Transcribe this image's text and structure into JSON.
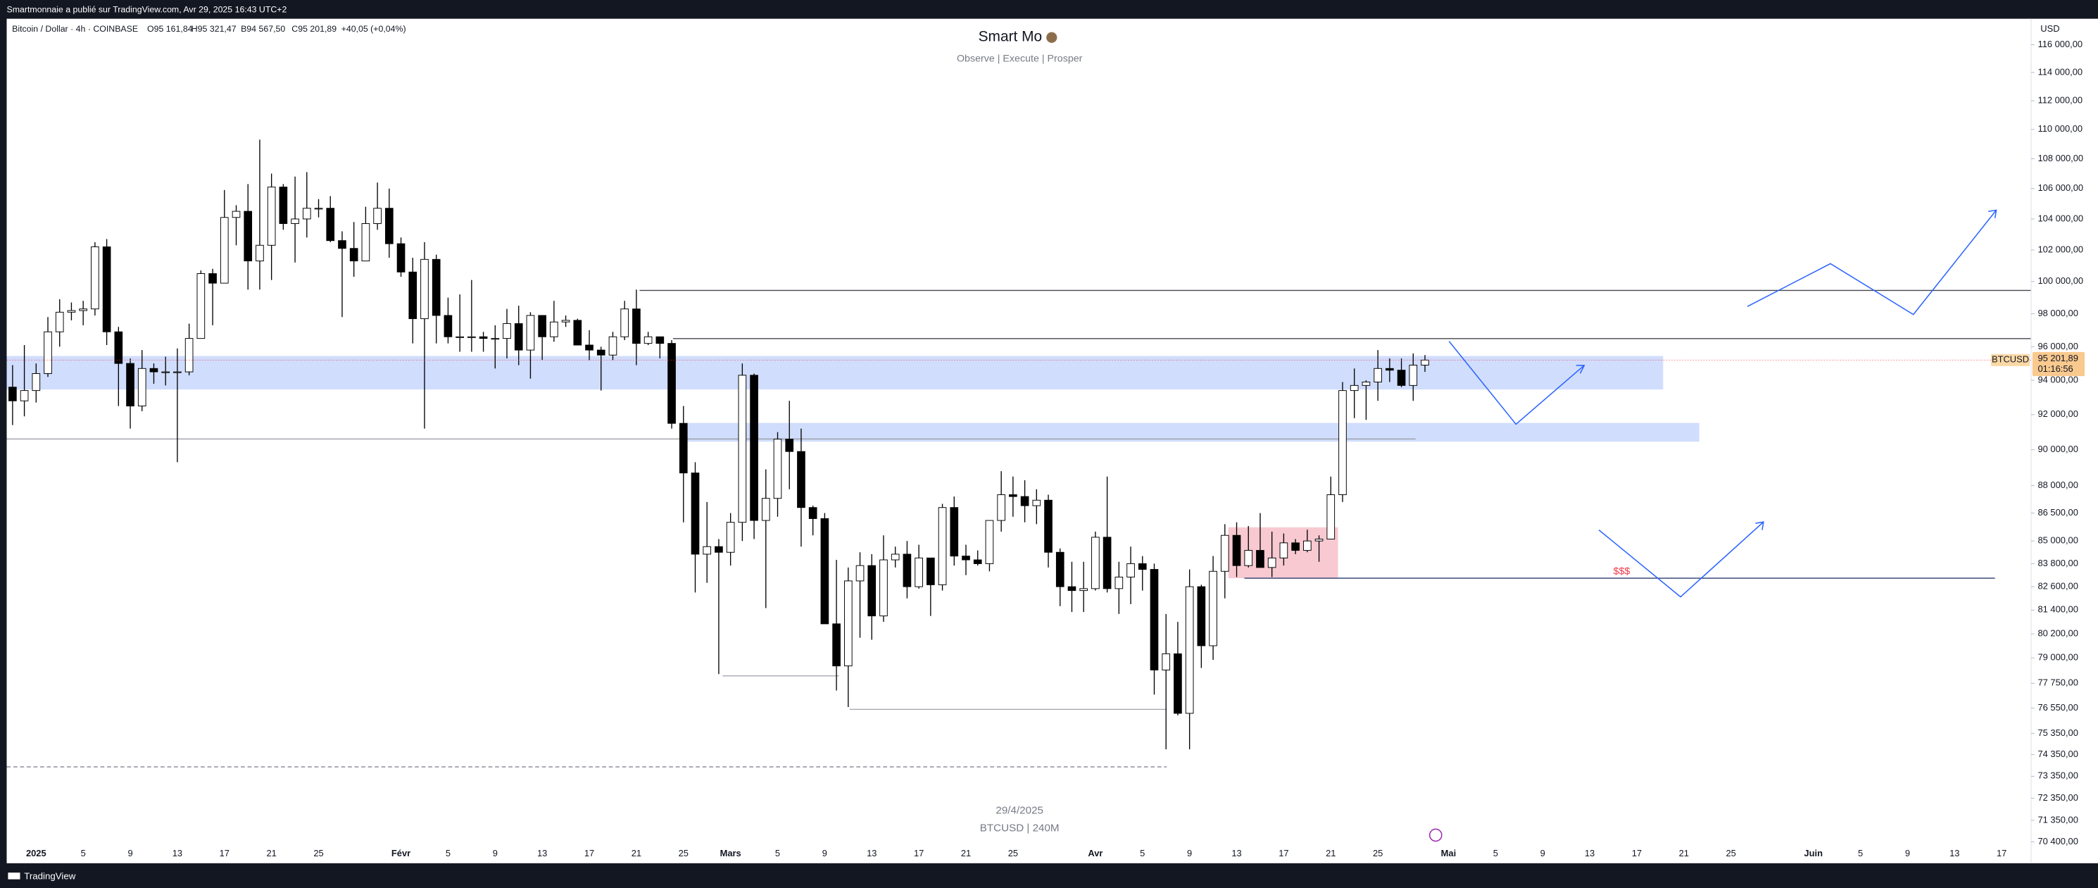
{
  "top_bar": "Smartmonnaie a publié sur TradingView.com, Avr 29, 2025 16:43 UTC+2",
  "brand": "TradingView",
  "legend": {
    "symbol": "Bitcoin / Dollar · 4h · COINBASE",
    "ohlc": [
      "O95 161,84",
      "H95 321,47",
      "B94 567,50",
      "C95 201,89",
      "+40,05 (+0,04%)"
    ]
  },
  "watermark": [
    "29/4/2025",
    "BTCUSD | 240M"
  ],
  "currency": "USD",
  "annotations": [
    "$$$"
  ],
  "chart_data": {
    "type": "candlestick",
    "title": "Smart Mo",
    "subtitle": "Observe |  Execute |  Prosper",
    "log_scale": true,
    "grid": false,
    "ylim": [
      69460,
      117900
    ],
    "yticks": [
      {
        "value": 116000,
        "label": "116 000,00"
      },
      {
        "value": 114000,
        "label": "114 000,00"
      },
      {
        "value": 112000,
        "label": "112 000,00"
      },
      {
        "value": 110000,
        "label": "110 000,00"
      },
      {
        "value": 108000,
        "label": "108 000,00"
      },
      {
        "value": 106000,
        "label": "106 000,00"
      },
      {
        "value": 104000,
        "label": "104 000,00"
      },
      {
        "value": 102000,
        "label": "102 000,00"
      },
      {
        "value": 100000,
        "label": "100 000,00"
      },
      {
        "value": 98000,
        "label": "98 000,00"
      },
      {
        "value": 96000,
        "label": "96 000,00"
      },
      {
        "value": 94000,
        "label": "94 000,00"
      },
      {
        "value": 92000,
        "label": "92 000,00"
      },
      {
        "value": 90000,
        "label": "90 000,00"
      },
      {
        "value": 88000,
        "label": "88 000,00"
      },
      {
        "value": 86500,
        "label": "86 500,00"
      },
      {
        "value": 85000,
        "label": "85 000,00"
      },
      {
        "value": 83800,
        "label": "83 800,00"
      },
      {
        "value": 82600,
        "label": "82 600,00"
      },
      {
        "value": 81400,
        "label": "81 400,00"
      },
      {
        "value": 80200,
        "label": "80 200,00"
      },
      {
        "value": 79000,
        "label": "79 000,00"
      },
      {
        "value": 77750,
        "label": "77 750,00"
      },
      {
        "value": 76550,
        "label": "76 550,00"
      },
      {
        "value": 75350,
        "label": "75 350,00"
      },
      {
        "value": 74350,
        "label": "74 350,00"
      },
      {
        "value": 73350,
        "label": "73 350,00"
      },
      {
        "value": 72350,
        "label": "72 350,00"
      },
      {
        "value": 71350,
        "label": "71 350,00"
      },
      {
        "value": 70400,
        "label": "70 400,00"
      }
    ],
    "categories": [
      null,
      null,
      "2025",
      null,
      null,
      null,
      "5",
      null,
      null,
      null,
      "9",
      null,
      null,
      null,
      "13",
      null,
      null,
      null,
      "17",
      null,
      null,
      null,
      "21",
      null,
      null,
      null,
      "25",
      null,
      null,
      null,
      null,
      null,
      null,
      "Févr",
      null,
      null,
      null,
      "5",
      null,
      null,
      null,
      "9",
      null,
      null,
      null,
      "13",
      null,
      null,
      null,
      "17",
      null,
      null,
      null,
      "21",
      null,
      null,
      null,
      "25",
      null,
      null,
      null,
      "Mars",
      null,
      null,
      null,
      "5",
      null,
      null,
      null,
      "9",
      null,
      null,
      null,
      "13",
      null,
      null,
      null,
      "17",
      null,
      null,
      null,
      "21",
      null,
      null,
      null,
      "25",
      null,
      null,
      null,
      null,
      null,
      null,
      "Avr",
      null,
      null,
      null,
      "5",
      null,
      null,
      null,
      "9",
      null,
      null,
      null,
      "13",
      null,
      null,
      null,
      "17",
      null,
      null,
      null,
      "21",
      null,
      null,
      null,
      "25",
      null,
      null,
      null,
      null,
      null,
      "Mai",
      null,
      null,
      null,
      "5",
      null,
      null,
      null,
      "9",
      null,
      null,
      null,
      "13",
      null,
      null,
      null,
      "17",
      null,
      null,
      null,
      "21",
      null,
      null,
      null,
      "25",
      null,
      null,
      null,
      null,
      null,
      null,
      "Juin",
      null,
      null,
      null,
      "5",
      null,
      null,
      null,
      "9",
      null,
      null,
      null,
      "13",
      null,
      null,
      null,
      "17",
      null,
      null
    ],
    "up_color": "#ffffff",
    "down_color": "#000000",
    "wick_color": "#000000",
    "last_price": {
      "value": 95201.89,
      "label": "95 201,89"
    },
    "last_price_color": "#f23645",
    "countdown": "01:16:56",
    "series": [
      {
        "name": "BTCUSD",
        "open": [
          93600,
          92800,
          93400,
          94400,
          96900,
          98100,
          98200,
          98300,
          102200,
          96900,
          95000,
          92500,
          94700,
          94500,
          94500,
          94500,
          96500,
          100500,
          99900,
          104100,
          104500,
          101300,
          102300,
          106100,
          103700,
          104000,
          104700,
          104700,
          102600,
          102100,
          101300,
          103700,
          104700,
          102400,
          100600,
          97700,
          101400,
          97900,
          96600,
          96600,
          96600,
          96500,
          96500,
          97400,
          95800,
          97900,
          96600,
          97500,
          97600,
          96100,
          95800,
          95500,
          96600,
          98300,
          96200,
          96600,
          96200,
          91500,
          88700,
          84300,
          84700,
          84400,
          86000,
          94300,
          86100,
          87300,
          90600,
          89900,
          86800,
          86200,
          80700,
          78600,
          82900,
          83700,
          81100,
          84000,
          84300,
          82600,
          84100,
          82700,
          86800,
          84200,
          84000,
          83800,
          86100,
          87500,
          87400,
          86900,
          87200,
          84400,
          82600,
          82400,
          82500,
          85200,
          82500,
          83100,
          83800,
          83500,
          78400,
          79200,
          76300,
          82600,
          79600,
          83400,
          85300,
          83700,
          84500,
          83600,
          84100,
          84900,
          84500,
          85000,
          85100,
          87500,
          93400,
          93700,
          93900,
          94700,
          94600,
          93700,
          94900,
          null,
          null,
          null,
          null,
          null,
          null,
          null,
          null,
          null,
          null,
          null,
          null,
          null,
          null,
          null,
          null,
          null,
          null,
          null,
          null,
          null,
          null,
          null,
          null,
          null,
          null,
          null,
          null,
          null,
          null,
          null,
          null,
          null,
          null,
          null,
          null,
          null,
          null,
          null,
          null,
          null,
          null,
          null,
          null,
          null,
          null,
          null,
          null,
          null,
          null,
          null
        ],
        "high": [
          94900,
          96100,
          95000,
          97800,
          98900,
          98700,
          98800,
          102500,
          102700,
          97200,
          95300,
          95800,
          95000,
          95400,
          95900,
          97400,
          100700,
          100800,
          105900,
          104900,
          106300,
          109300,
          107000,
          106300,
          106800,
          107100,
          105300,
          105500,
          103200,
          103800,
          104800,
          106400,
          106000,
          102800,
          101500,
          102500,
          101700,
          99000,
          99200,
          100100,
          96900,
          97300,
          98300,
          98500,
          98100,
          97900,
          98800,
          97900,
          97700,
          97000,
          96000,
          96900,
          98800,
          99500,
          96900,
          96600,
          96400,
          92500,
          89300,
          87100,
          85100,
          86500,
          95000,
          94400,
          88900,
          91000,
          92800,
          91200,
          86900,
          86500,
          84000,
          83600,
          84400,
          84300,
          85300,
          84700,
          85000,
          84800,
          84100,
          87000,
          87400,
          84800,
          84500,
          86100,
          88800,
          88500,
          88300,
          87800,
          87500,
          84600,
          83900,
          83900,
          85500,
          88500,
          83900,
          84700,
          84200,
          83800,
          81200,
          80800,
          83500,
          82700,
          84200,
          85900,
          86000,
          85800,
          86500,
          85500,
          85400,
          85100,
          85600,
          85300,
          88500,
          93900,
          94700,
          94000,
          95800,
          95300,
          95300,
          95600,
          95500,
          null,
          null,
          null,
          null,
          null,
          null,
          null,
          null,
          null,
          null,
          null,
          null,
          null,
          null,
          null,
          null,
          null,
          null,
          null,
          null,
          null,
          null,
          null,
          null,
          null,
          null,
          null,
          null,
          null,
          null,
          null,
          null,
          null,
          null,
          null,
          null,
          null,
          null,
          null,
          null,
          null,
          null,
          null,
          null,
          null,
          null,
          null,
          null,
          null,
          null,
          null
        ],
        "low": [
          91400,
          91900,
          92700,
          94200,
          96000,
          97600,
          97300,
          97900,
          96100,
          92500,
          91200,
          92200,
          93800,
          93700,
          89300,
          94300,
          96500,
          97300,
          99900,
          102300,
          99500,
          99500,
          100100,
          103300,
          101200,
          102800,
          104100,
          102500,
          97800,
          100300,
          101300,
          103300,
          101500,
          100300,
          96200,
          91200,
          96200,
          96200,
          95700,
          95700,
          95700,
          94700,
          95300,
          94900,
          94100,
          95200,
          96300,
          97200,
          96100,
          95200,
          93400,
          95200,
          96400,
          94900,
          96100,
          95300,
          91200,
          86000,
          82300,
          82800,
          78200,
          83700,
          85000,
          85100,
          81500,
          86300,
          87800,
          84700,
          85300,
          80700,
          77400,
          76600,
          80000,
          79900,
          80800,
          83600,
          82000,
          82500,
          81100,
          82400,
          83700,
          83200,
          83700,
          83400,
          85500,
          86300,
          86000,
          85900,
          83600,
          81600,
          81300,
          81300,
          82400,
          82300,
          81200,
          81700,
          82400,
          77200,
          74600,
          76200,
          74600,
          78500,
          78900,
          82000,
          83100,
          83600,
          83600,
          83100,
          83700,
          84300,
          84400,
          83900,
          85100,
          87100,
          91800,
          91700,
          92800,
          93900,
          93600,
          92800,
          94500,
          null,
          null,
          null,
          null,
          null,
          null,
          null,
          null,
          null,
          null,
          null,
          null,
          null,
          null,
          null,
          null,
          null,
          null,
          null,
          null,
          null,
          null,
          null,
          null,
          null,
          null,
          null,
          null,
          null,
          null,
          null,
          null,
          null,
          null,
          null,
          null,
          null,
          null,
          null,
          null,
          null,
          null,
          null,
          null,
          null,
          null,
          null,
          null,
          null,
          null,
          null
        ],
        "close": [
          92800,
          93400,
          94400,
          96900,
          98100,
          98200,
          98300,
          102200,
          96900,
          95000,
          92500,
          94700,
          94500,
          94500,
          94500,
          96500,
          100500,
          99900,
          104100,
          104500,
          101300,
          102300,
          106100,
          103700,
          104000,
          104700,
          104700,
          102600,
          102100,
          101300,
          103700,
          104700,
          102400,
          100600,
          97700,
          101400,
          97900,
          96600,
          96600,
          96600,
          96500,
          96500,
          97400,
          95800,
          97900,
          96600,
          97500,
          97600,
          96100,
          95800,
          95500,
          96600,
          98300,
          96200,
          96600,
          96200,
          91500,
          88700,
          84300,
          84700,
          84400,
          86000,
          94300,
          86100,
          87300,
          90600,
          89900,
          86800,
          86200,
          80700,
          78600,
          82900,
          83700,
          81100,
          84000,
          84300,
          82600,
          84100,
          82700,
          86800,
          84200,
          84000,
          83800,
          86100,
          87500,
          87400,
          86900,
          87200,
          84400,
          82600,
          82400,
          82500,
          85200,
          82500,
          83100,
          83800,
          83500,
          78400,
          79200,
          76300,
          82600,
          79600,
          83400,
          85300,
          83700,
          84500,
          83600,
          84100,
          84900,
          84500,
          85000,
          85100,
          87500,
          93400,
          93700,
          93900,
          94700,
          94600,
          93700,
          94900,
          95200,
          null,
          null,
          null,
          null,
          null,
          null,
          null,
          null,
          null,
          null,
          null,
          null,
          null,
          null,
          null,
          null,
          null,
          null,
          null,
          null,
          null,
          null,
          null,
          null,
          null,
          null,
          null,
          null,
          null,
          null,
          null,
          null,
          null,
          null,
          null,
          null,
          null,
          null,
          null,
          null,
          null,
          null,
          null,
          null,
          null,
          null,
          null,
          null,
          null,
          null,
          null
        ]
      }
    ]
  }
}
